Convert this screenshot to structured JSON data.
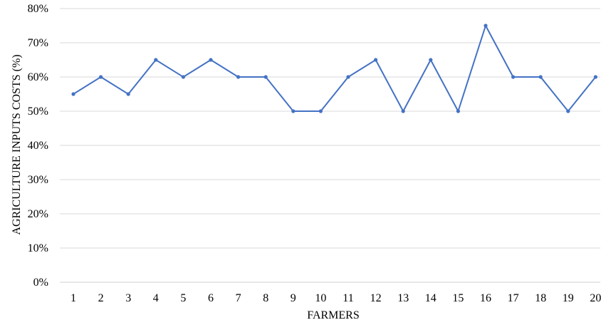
{
  "chart_data": {
    "type": "line",
    "xlabel": "FARMERS",
    "ylabel": "AGRICULTURE INPUTS COSTS (%)",
    "categories": [
      "1",
      "2",
      "3",
      "4",
      "5",
      "6",
      "7",
      "8",
      "9",
      "10",
      "11",
      "12",
      "13",
      "14",
      "15",
      "16",
      "17",
      "18",
      "19",
      "20"
    ],
    "series": [
      {
        "values": [
          55,
          60,
          55,
          65,
          60,
          65,
          60,
          60,
          50,
          50,
          60,
          65,
          50,
          65,
          50,
          75,
          60,
          60,
          50,
          60
        ]
      }
    ],
    "ylim": [
      0,
      80
    ],
    "yticks": [
      "0%",
      "10%",
      "20%",
      "30%",
      "40%",
      "50%",
      "60%",
      "70%",
      "80%"
    ],
    "grid": true,
    "legend": "none",
    "colors": {
      "line": "#4472c4",
      "grid": "#d9d9d9",
      "baseline": "#d0d0d0"
    }
  }
}
